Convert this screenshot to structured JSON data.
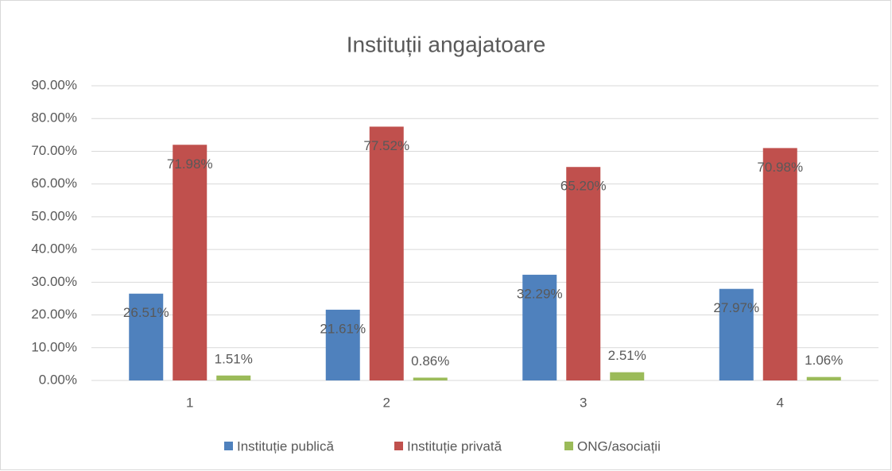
{
  "chart_data": {
    "type": "bar",
    "title": "Instituții angajatoare",
    "categories": [
      "1",
      "2",
      "3",
      "4"
    ],
    "series": [
      {
        "name": "Instituție publică",
        "color": "#4f81bd",
        "values": [
          26.51,
          21.61,
          32.29,
          27.97
        ],
        "value_labels": [
          "26.51%",
          "21.61%",
          "32.29%",
          "27.97%"
        ]
      },
      {
        "name": "Instituție privată",
        "color": "#c0504d",
        "values": [
          71.98,
          77.52,
          65.2,
          70.98
        ],
        "value_labels": [
          "71.98%",
          "77.52%",
          "65.20%",
          "70.98%"
        ]
      },
      {
        "name": "ONG/asociații",
        "color": "#9bbb59",
        "values": [
          1.51,
          0.86,
          2.51,
          1.06
        ],
        "value_labels": [
          "1.51%",
          "0.86%",
          "2.51%",
          "1.06%"
        ]
      }
    ],
    "ylim": [
      0,
      90
    ],
    "yticks": [
      {
        "value": 0,
        "label": "0.00%"
      },
      {
        "value": 10,
        "label": "10.00%"
      },
      {
        "value": 20,
        "label": "20.00%"
      },
      {
        "value": 30,
        "label": "30.00%"
      },
      {
        "value": 40,
        "label": "40.00%"
      },
      {
        "value": 50,
        "label": "50.00%"
      },
      {
        "value": 60,
        "label": "60.00%"
      },
      {
        "value": 70,
        "label": "70.00%"
      },
      {
        "value": 80,
        "label": "80.00%"
      },
      {
        "value": 90,
        "label": "90.00%"
      }
    ],
    "grid": true,
    "legend": "bottom"
  }
}
